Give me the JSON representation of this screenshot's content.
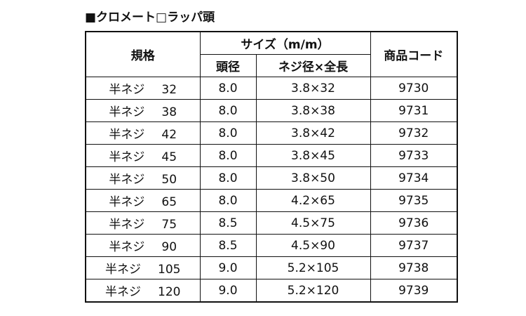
{
  "title": "■クロメート□ラッパ頭",
  "table": {
    "headers": {
      "spec": "規格",
      "size": "サイズ（m/m）",
      "head": "頭径",
      "length": "ネジ径×全長",
      "code": "商品コード"
    },
    "rows": [
      [
        "半ネジ",
        "32",
        "8.0",
        "3.8×32",
        "9730"
      ],
      [
        "半ネジ",
        "38",
        "8.0",
        "3.8×38",
        "9731"
      ],
      [
        "半ネジ",
        "42",
        "8.0",
        "3.8×42",
        "9732"
      ],
      [
        "半ネジ",
        "45",
        "8.0",
        "3.8×45",
        "9733"
      ],
      [
        "半ネジ",
        "50",
        "8.0",
        "3.8×50",
        "9734"
      ],
      [
        "半ネジ",
        "65",
        "8.0",
        "4.2×65",
        "9735"
      ],
      [
        "半ネジ",
        "75",
        "8.5",
        "4.5×75",
        "9736"
      ],
      [
        "半ネジ",
        "90",
        "8.5",
        "4.5×90",
        "9737"
      ],
      [
        "半ネジ",
        "105",
        "9.0",
        "5.2×105",
        "9738"
      ],
      [
        "半ネジ",
        "120",
        "9.0",
        "5.2×120",
        "9739"
      ]
    ]
  }
}
